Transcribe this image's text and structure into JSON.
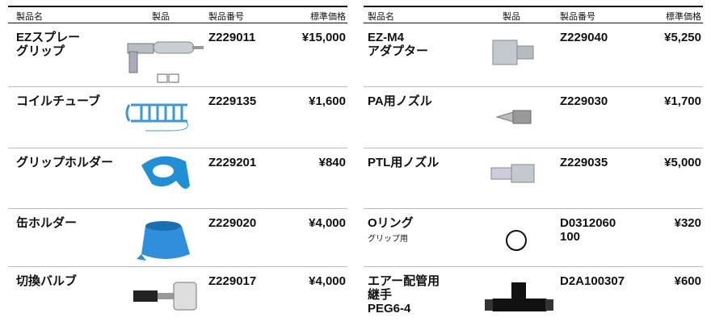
{
  "tables": [
    {
      "headers": [
        "製品名",
        "製品",
        "製品番号",
        "標準価格"
      ],
      "rows": [
        {
          "name": [
            "EZスプレー",
            "グリップ"
          ],
          "code": [
            "Z229011"
          ],
          "price": "¥15,000"
        },
        {
          "name": [
            "コイルチューブ"
          ],
          "code": [
            "Z229135"
          ],
          "price": "¥1,600"
        },
        {
          "name": [
            "グリップホルダー"
          ],
          "code": [
            "Z229201"
          ],
          "price": "¥840"
        },
        {
          "name": [
            "缶ホルダー"
          ],
          "code": [
            "Z229020"
          ],
          "price": "¥4,000"
        },
        {
          "name": [
            "切換バルブ"
          ],
          "code": [
            "Z229017"
          ],
          "price": "¥4,000"
        }
      ]
    },
    {
      "headers": [
        "製品名",
        "製品",
        "製品番号",
        "標準価格"
      ],
      "rows": [
        {
          "name": [
            "EZ-M4",
            "アダプター"
          ],
          "code": [
            "Z229040"
          ],
          "price": "¥5,250"
        },
        {
          "name": [
            "PA用ノズル"
          ],
          "code": [
            "Z229030"
          ],
          "price": "¥1,700"
        },
        {
          "name": [
            "PTL用ノズル"
          ],
          "code": [
            "Z229035"
          ],
          "price": "¥5,000"
        },
        {
          "name": [
            "Oリング"
          ],
          "note": "グリップ用",
          "code": [
            "D0312060",
            "100"
          ],
          "price": "¥320"
        },
        {
          "name": [
            "エアー配管用",
            "継手",
            "PEG6-4"
          ],
          "code": [
            "D2A100307"
          ],
          "price": "¥600"
        }
      ]
    }
  ]
}
